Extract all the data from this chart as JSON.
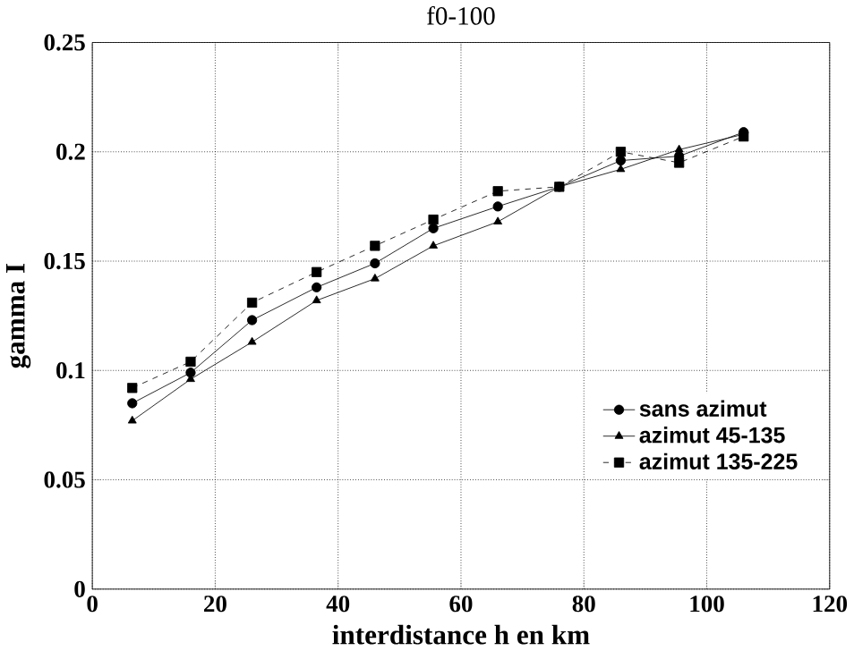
{
  "chart_data": {
    "type": "line",
    "title": "f0-100",
    "xlabel": "interdistance h en km",
    "ylabel": "gamma I",
    "x": [
      6.5,
      16,
      26,
      36.5,
      46,
      55.5,
      66,
      76,
      86,
      95.5,
      106
    ],
    "series": [
      {
        "name": "sans azimut",
        "color": "#000000",
        "marker": "circle",
        "line_style": "solid",
        "values": [
          0.085,
          0.099,
          0.123,
          0.138,
          0.149,
          0.165,
          0.175,
          0.184,
          0.196,
          0.198,
          0.209
        ]
      },
      {
        "name": "azimut 45-135",
        "color": "#000000",
        "marker": "triangle",
        "line_style": "solid",
        "values": [
          0.077,
          0.096,
          0.113,
          0.132,
          0.142,
          0.157,
          0.168,
          0.184,
          0.192,
          0.201,
          0.208
        ]
      },
      {
        "name": "azimut 135-225",
        "color": "#000000",
        "marker": "square",
        "line_style": "dashed",
        "values": [
          0.092,
          0.104,
          0.131,
          0.145,
          0.157,
          0.169,
          0.182,
          0.184,
          0.2,
          0.195,
          0.207
        ]
      }
    ],
    "xlim": [
      0,
      120
    ],
    "xticks": [
      0,
      20,
      40,
      60,
      80,
      100,
      120
    ],
    "ylim": [
      0,
      0.25
    ],
    "yticks": [
      {
        "value": 0,
        "label": "0"
      },
      {
        "value": 0.05,
        "label": "0.05"
      },
      {
        "value": 0.1,
        "label": "0.1"
      },
      {
        "value": 0.15,
        "label": "0.15"
      },
      {
        "value": 0.2,
        "label": "0.2"
      },
      {
        "value": 0.25,
        "label": "0.25"
      }
    ],
    "grid": true,
    "legend": "bottom right"
  }
}
